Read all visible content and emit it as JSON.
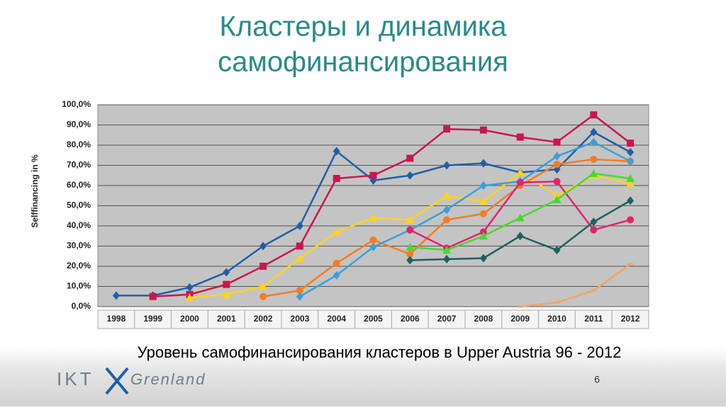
{
  "title": [
    "Кластеры и динамика",
    "самофинансирования"
  ],
  "chart_data": {
    "type": "line",
    "y_label": "Selffinancing in %",
    "categories": [
      "1998",
      "1999",
      "2000",
      "2001",
      "2002",
      "2003",
      "2004",
      "2005",
      "2006",
      "2007",
      "2008",
      "2009",
      "2010",
      "2011",
      "2012"
    ],
    "ylim": [
      0,
      100
    ],
    "yticks": [
      {
        "value": 0,
        "label": "0,0%"
      },
      {
        "value": 10,
        "label": "10,0%"
      },
      {
        "value": 20,
        "label": "20,0%"
      },
      {
        "value": 30,
        "label": "30,0%"
      },
      {
        "value": 40,
        "label": "40,0%"
      },
      {
        "value": 50,
        "label": "50,0%"
      },
      {
        "value": 60,
        "label": "60,0%"
      },
      {
        "value": 70,
        "label": "70,0%"
      },
      {
        "value": 80,
        "label": "80,0%"
      },
      {
        "value": 90,
        "label": "90,0%"
      },
      {
        "value": 100,
        "label": "100,0%"
      }
    ],
    "grid": true,
    "series": [
      {
        "color": "#1f5fa8",
        "marker": "diamond",
        "values": [
          5.5,
          5.5,
          9.5,
          17,
          30,
          40,
          77,
          62.5,
          65,
          70,
          71,
          66.5,
          68,
          86.5,
          76.5
        ]
      },
      {
        "color": "#c8174f",
        "marker": "square",
        "values": [
          null,
          5,
          6,
          11,
          20,
          30,
          63.5,
          65,
          73.5,
          88,
          87.5,
          84,
          81.5,
          95,
          81
        ]
      },
      {
        "color": "#ffd21f",
        "marker": "triangle",
        "values": [
          null,
          null,
          4.5,
          6,
          10,
          24,
          37,
          44,
          43,
          55,
          52,
          66.5,
          55,
          65,
          61
        ]
      },
      {
        "color": "#f47c20",
        "marker": "circle",
        "values": [
          null,
          null,
          null,
          null,
          5,
          8,
          21.5,
          33,
          26,
          43,
          46,
          60,
          70.5,
          73,
          72
        ]
      },
      {
        "color": "#3aa0d8",
        "marker": "diamond",
        "values": [
          null,
          null,
          null,
          null,
          null,
          5,
          15.5,
          29.5,
          38,
          48,
          60,
          62,
          74.5,
          81.5,
          72
        ]
      },
      {
        "color": "#e0246e",
        "marker": "circle",
        "values": [
          null,
          null,
          null,
          null,
          null,
          null,
          null,
          null,
          38,
          29,
          37,
          61.5,
          62,
          38,
          43
        ]
      },
      {
        "color": "#4cd630",
        "marker": "triangle",
        "values": [
          null,
          null,
          null,
          null,
          null,
          null,
          null,
          null,
          29.5,
          28,
          35,
          44,
          53,
          66,
          63.5
        ]
      },
      {
        "color": "#1f6060",
        "marker": "diamond",
        "values": [
          null,
          null,
          null,
          null,
          null,
          null,
          null,
          null,
          23,
          23.5,
          24,
          35,
          28,
          42,
          52.5
        ]
      },
      {
        "color": "#f4a460",
        "marker": "dash",
        "values": [
          null,
          null,
          null,
          null,
          null,
          null,
          null,
          null,
          null,
          null,
          null,
          0,
          2,
          8,
          21
        ]
      }
    ]
  },
  "caption": "Уровень самофинансирования кластеров в Upper Austria 96 - 2012",
  "logo": [
    "IKT",
    "Grenland"
  ],
  "page_number": "6"
}
